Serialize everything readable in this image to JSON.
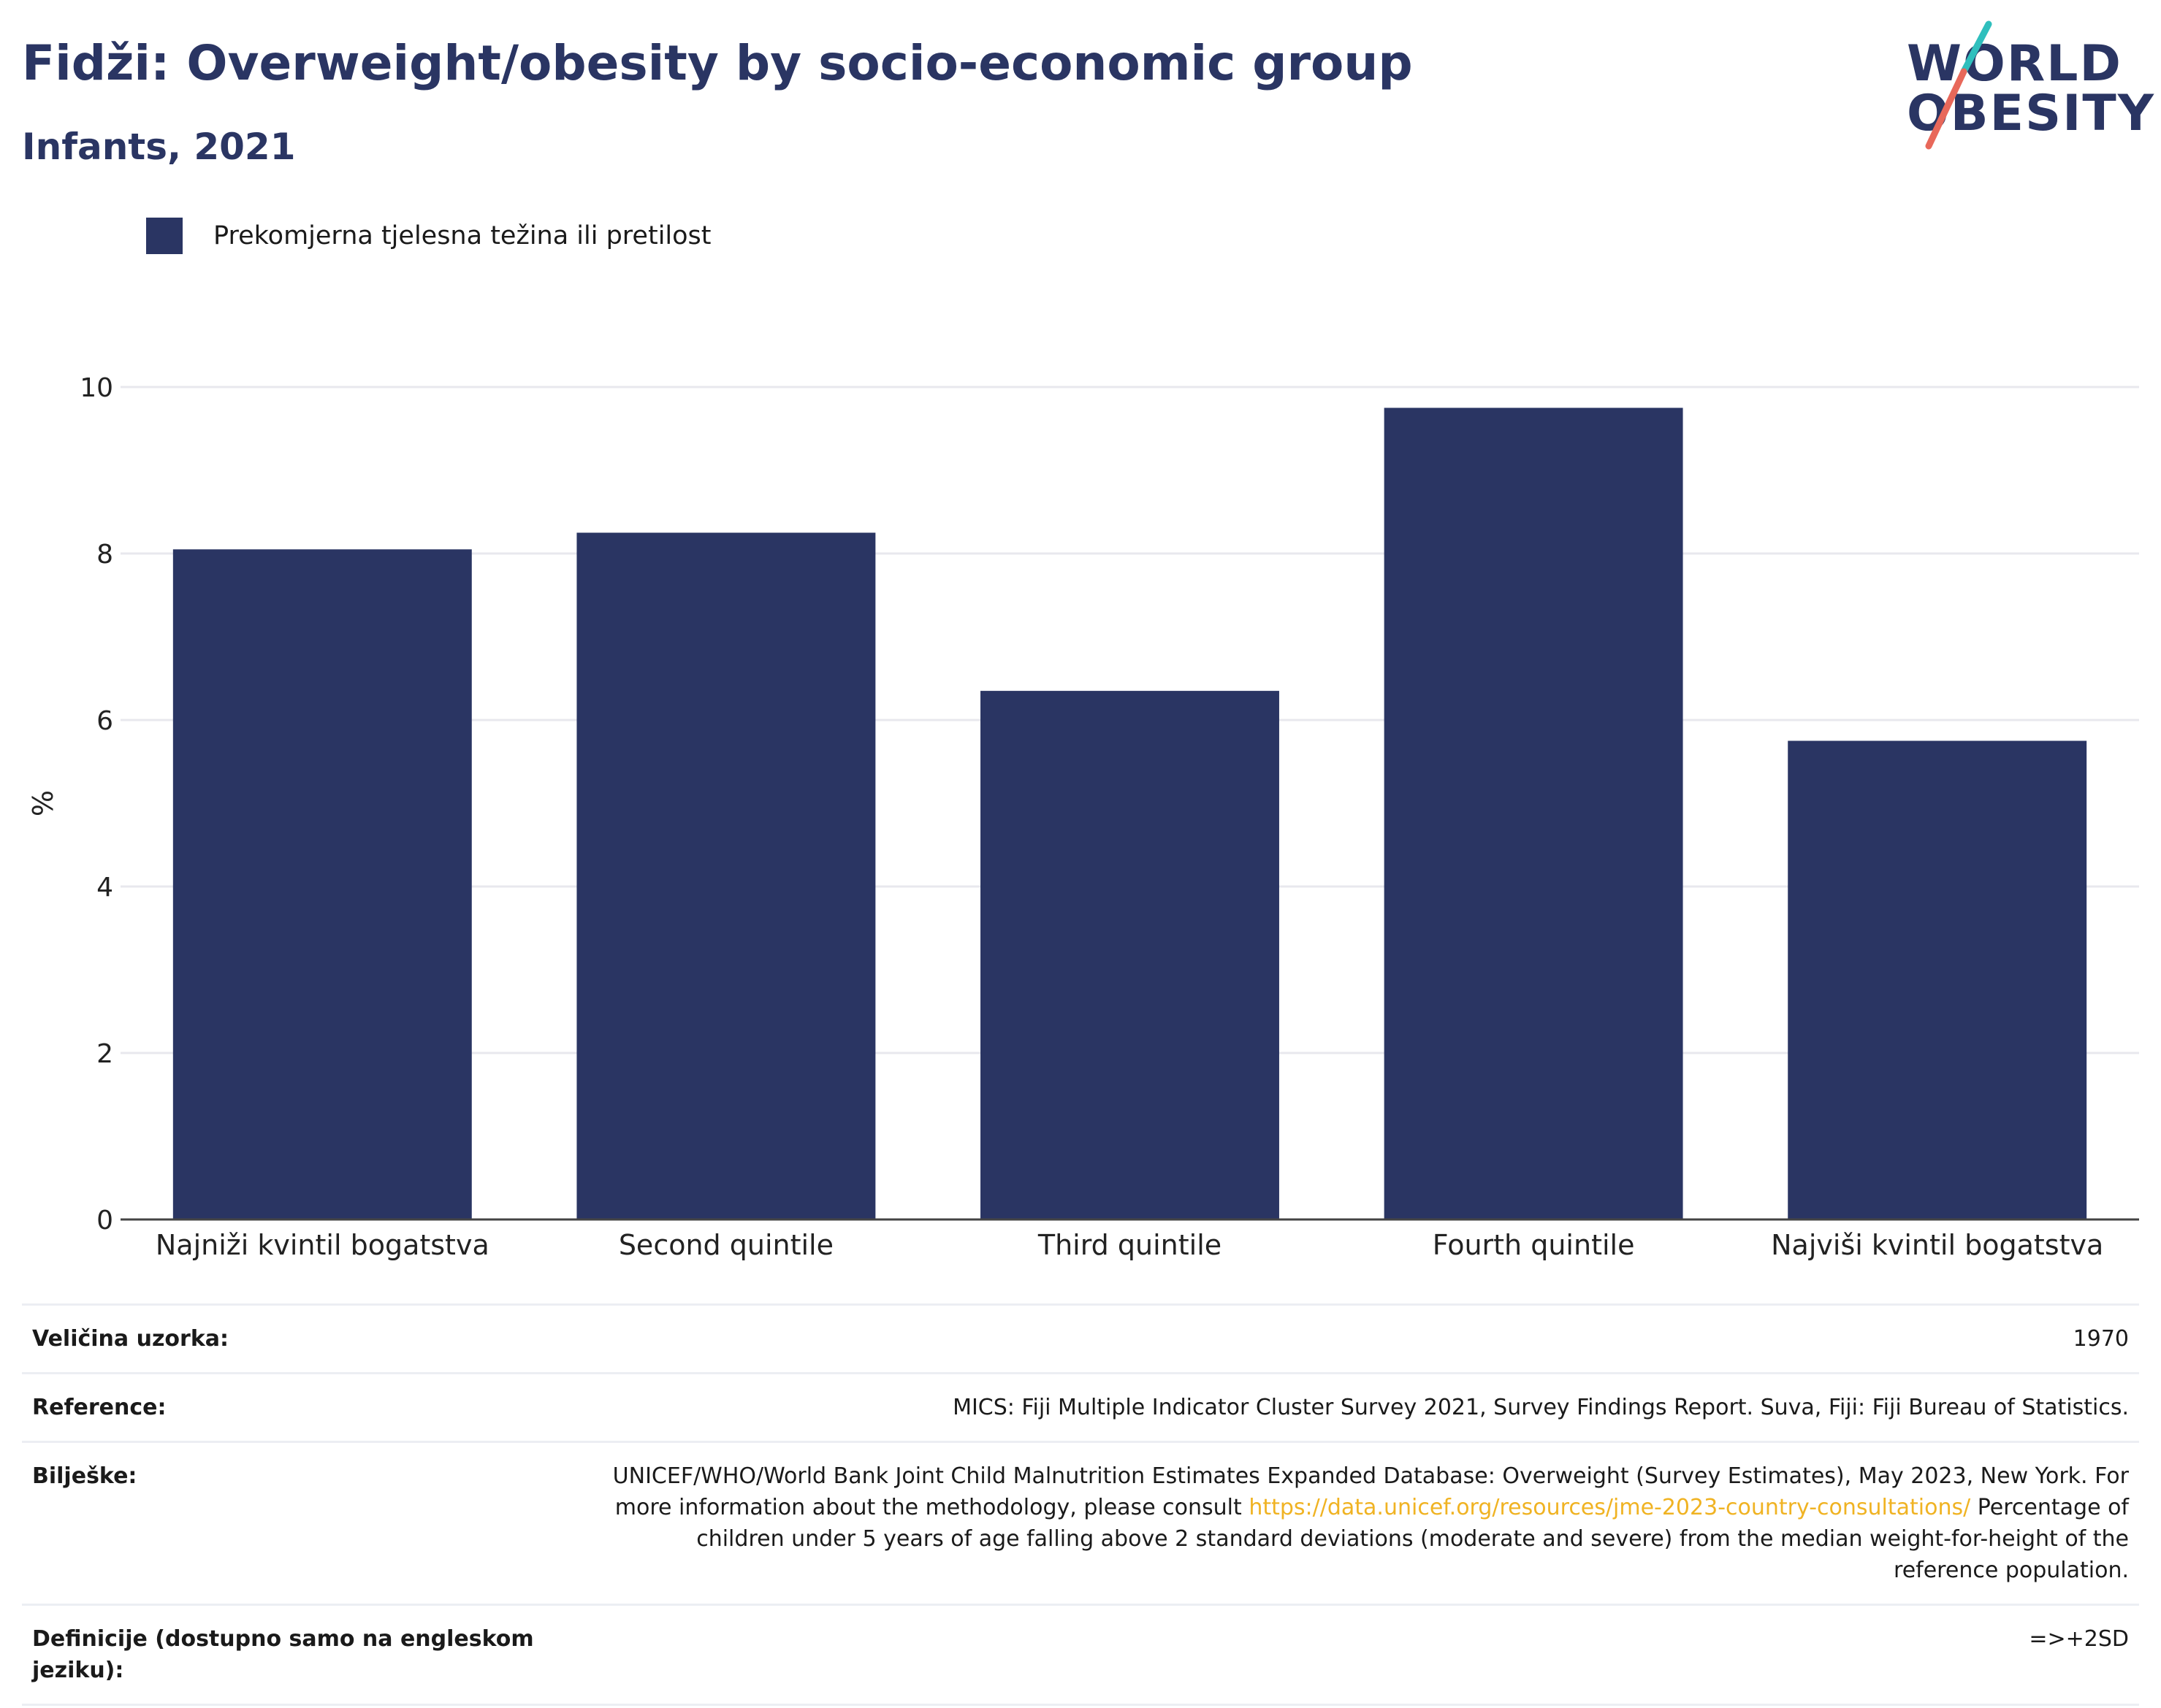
{
  "title": "Fidži: Overweight/obesity by socio-economic group",
  "subtitle": "Infants, 2021",
  "logo": {
    "line1": "WORLD",
    "line2": "OBESITY",
    "accent_teal": "#2fbfbd",
    "accent_coral": "#e8685a"
  },
  "legend": {
    "label": "Prekomjerna tjelesna težina ili pretilost",
    "color": "#2a3563"
  },
  "chart_data": {
    "type": "bar",
    "categories": [
      "Najniži kvintil bogatstva",
      "Second quintile",
      "Third quintile",
      "Fourth quintile",
      "Najviši kvintil bogatstva"
    ],
    "series": [
      {
        "name": "Prekomjerna tjelesna težina ili pretilost",
        "values": [
          8.05,
          8.25,
          6.35,
          9.75,
          5.75
        ],
        "color": "#2a3563"
      }
    ],
    "ylabel": "%",
    "xlabel": "",
    "ylim": [
      0,
      10
    ],
    "yticks": [
      0,
      2,
      4,
      6,
      8,
      10
    ],
    "grid": true
  },
  "info": {
    "sample_size_label": "Veličina uzorka:",
    "sample_size_value": "1970",
    "reference_label": "Reference:",
    "reference_value": "MICS: Fiji Multiple Indicator Cluster Survey 2021, Survey Findings Report. Suva, Fiji: Fiji Bureau of Statistics.",
    "notes_label": "Bilješke:",
    "notes_text1": "UNICEF/WHO/World Bank Joint Child Malnutrition Estimates Expanded Database: Overweight (Survey Estimates), May 2023, New York. For more information about the methodology, please consult ",
    "notes_link": "https://data.unicef.org/resources/jme-2023-country-consultations/",
    "notes_text2": "Percentage of children under 5 years of age falling above 2 standard deviations (moderate and severe) from the median weight-for-height of the reference population.",
    "definitions_label": "Definicije (dostupno samo na engleskom jeziku):",
    "definitions_value": "=>+2SD"
  }
}
